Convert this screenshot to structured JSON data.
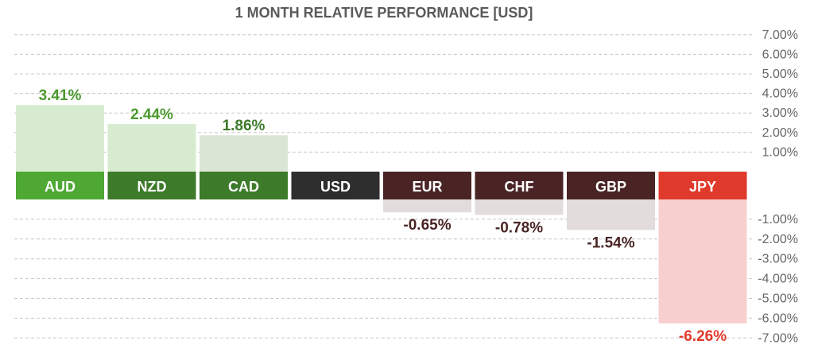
{
  "chart_data": {
    "type": "bar",
    "title": "1 MONTH RELATIVE PERFORMANCE  [USD]",
    "categories": [
      "AUD",
      "NZD",
      "CAD",
      "USD",
      "EUR",
      "CHF",
      "GBP",
      "JPY"
    ],
    "values": [
      3.41,
      2.44,
      1.86,
      0,
      -0.65,
      -0.78,
      -1.54,
      -6.26
    ],
    "value_labels": [
      "3.41%",
      "2.44%",
      "1.86%",
      "",
      "-0.65%",
      "-0.78%",
      "-1.54%",
      "-6.26%"
    ],
    "ylim": [
      -7,
      7
    ],
    "positive_ticks": [
      "7.00%",
      "6.00%",
      "5.00%",
      "4.00%",
      "3.00%",
      "2.00%",
      "1.00%"
    ],
    "negative_ticks": [
      "-1.00%",
      "-2.00%",
      "-3.00%",
      "-4.00%",
      "-5.00%",
      "-6.00%",
      "-7.00%"
    ],
    "grid": true,
    "colors": {
      "header": [
        "#4ea833",
        "#3d7a2a",
        "#3d7a2a",
        "#2e2e2e",
        "#4a2424",
        "#4a2424",
        "#4a2424",
        "#e03a2c"
      ],
      "bar": [
        "#d6ebcf",
        "#d6ebcf",
        "#dbe5d6",
        "#ffffff",
        "#e3dcdc",
        "#e3dcdc",
        "#e3dcdc",
        "#f8cfcf"
      ],
      "label": [
        "#4a9a2e",
        "#4a9a2e",
        "#3d7a2a",
        "#2e2e2e",
        "#4a2424",
        "#4a2424",
        "#4a2424",
        "#e03a2c"
      ]
    }
  }
}
